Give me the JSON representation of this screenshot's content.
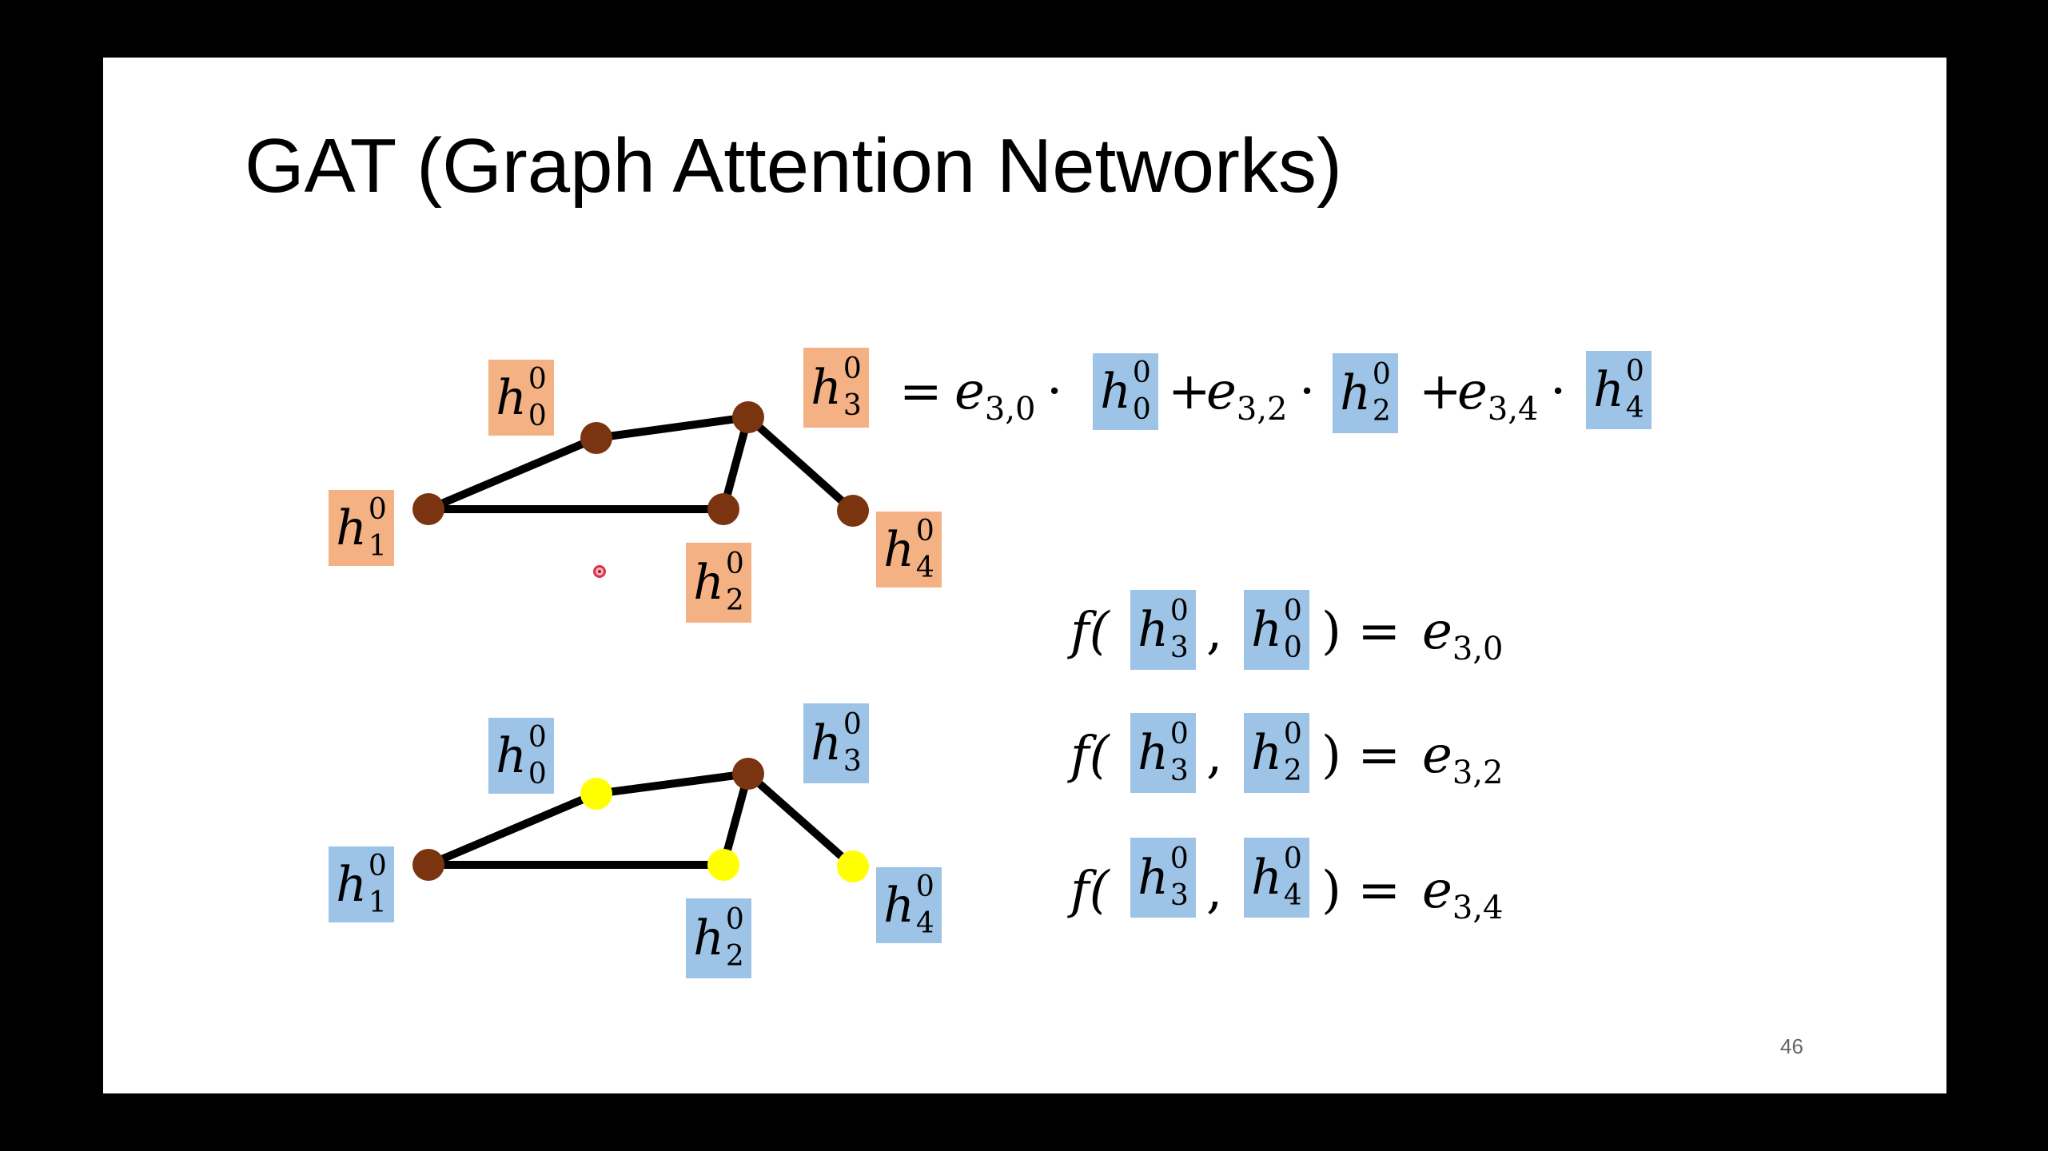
{
  "slide": {
    "title": "GAT (Graph Attention Networks)",
    "page_number": "46"
  },
  "graph_top": {
    "labels": {
      "h0": {
        "letter": "h",
        "sup": "0",
        "sub": "0"
      },
      "h1": {
        "letter": "h",
        "sup": "0",
        "sub": "1"
      },
      "h2": {
        "letter": "h",
        "sup": "0",
        "sub": "2"
      },
      "h3": {
        "letter": "h",
        "sup": "0",
        "sub": "3"
      },
      "h4": {
        "letter": "h",
        "sup": "0",
        "sub": "4"
      }
    },
    "node_color": "#7b3410",
    "label_color": "#f4b183"
  },
  "graph_bottom": {
    "labels": {
      "h0": {
        "letter": "h",
        "sup": "0",
        "sub": "0"
      },
      "h1": {
        "letter": "h",
        "sup": "0",
        "sub": "1"
      },
      "h2": {
        "letter": "h",
        "sup": "0",
        "sub": "2"
      },
      "h3": {
        "letter": "h",
        "sup": "0",
        "sub": "3"
      },
      "h4": {
        "letter": "h",
        "sup": "0",
        "sub": "4"
      }
    },
    "center_node_color": "#7b3410",
    "neighbor_node_color": "#ffff00",
    "label_color": "#9dc3e6"
  },
  "main_equation": {
    "equals": "=",
    "term1_e": "e",
    "term1_sub": "3,0",
    "dot1": "·",
    "plus2": "+",
    "term2_e": "e",
    "term2_sub": "3,2",
    "dot2": "·",
    "plus3": "+",
    "term3_e": "e",
    "term3_sub": "3,4",
    "dot3": "·",
    "h0": {
      "letter": "h",
      "sup": "0",
      "sub": "0"
    },
    "h2": {
      "letter": "h",
      "sup": "0",
      "sub": "2"
    },
    "h4": {
      "letter": "h",
      "sup": "0",
      "sub": "4"
    }
  },
  "f_equations": [
    {
      "f": "f(",
      "comma": ",",
      "close": ") =",
      "e": "e",
      "e_sub": "3,0",
      "a": {
        "letter": "h",
        "sup": "0",
        "sub": "3"
      },
      "b": {
        "letter": "h",
        "sup": "0",
        "sub": "0"
      }
    },
    {
      "f": "f(",
      "comma": ",",
      "close": ") =",
      "e": "e",
      "e_sub": "3,2",
      "a": {
        "letter": "h",
        "sup": "0",
        "sub": "3"
      },
      "b": {
        "letter": "h",
        "sup": "0",
        "sub": "2"
      }
    },
    {
      "f": "f(",
      "comma": ",",
      "close": ") =",
      "e": "e",
      "e_sub": "3,4",
      "a": {
        "letter": "h",
        "sup": "0",
        "sub": "3"
      },
      "b": {
        "letter": "h",
        "sup": "0",
        "sub": "4"
      }
    }
  ]
}
